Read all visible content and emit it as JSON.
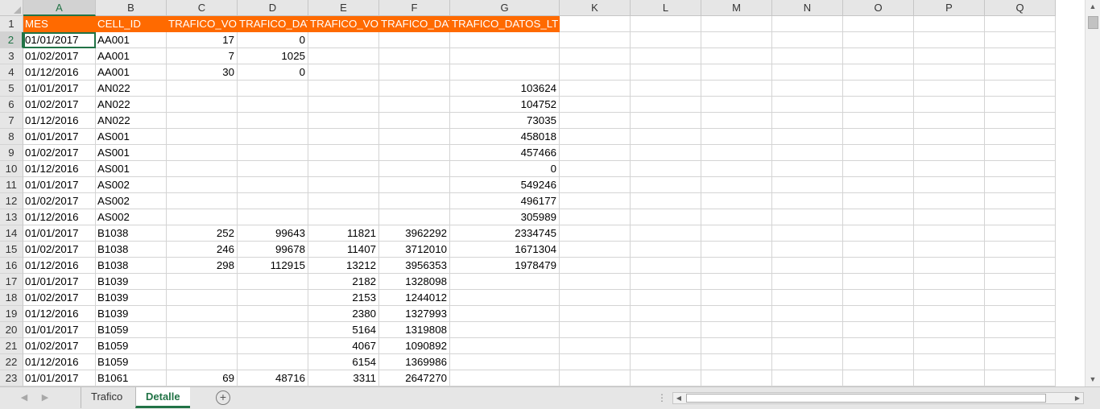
{
  "columns": [
    "A",
    "B",
    "C",
    "D",
    "E",
    "F",
    "G",
    "K",
    "L",
    "M",
    "N",
    "O",
    "P",
    "Q"
  ],
  "selected_column": "A",
  "active_row": 2,
  "header_row": {
    "row_number": "1",
    "cells": [
      "MES",
      "CELL_ID",
      "TRAFICO_VOZ",
      "TRAFICO_DAT",
      "TRAFICO_VOZ",
      "TRAFICO_DAT",
      "TRAFICO_DATOS_LTE"
    ]
  },
  "rows": [
    {
      "n": "2",
      "c": [
        "01/01/2017",
        "AA001",
        "17",
        "0",
        "",
        "",
        ""
      ]
    },
    {
      "n": "3",
      "c": [
        "01/02/2017",
        "AA001",
        "7",
        "1025",
        "",
        "",
        ""
      ]
    },
    {
      "n": "4",
      "c": [
        "01/12/2016",
        "AA001",
        "30",
        "0",
        "",
        "",
        ""
      ]
    },
    {
      "n": "5",
      "c": [
        "01/01/2017",
        "AN022",
        "",
        "",
        "",
        "",
        "103624"
      ]
    },
    {
      "n": "6",
      "c": [
        "01/02/2017",
        "AN022",
        "",
        "",
        "",
        "",
        "104752"
      ]
    },
    {
      "n": "7",
      "c": [
        "01/12/2016",
        "AN022",
        "",
        "",
        "",
        "",
        "73035"
      ]
    },
    {
      "n": "8",
      "c": [
        "01/01/2017",
        "AS001",
        "",
        "",
        "",
        "",
        "458018"
      ]
    },
    {
      "n": "9",
      "c": [
        "01/02/2017",
        "AS001",
        "",
        "",
        "",
        "",
        "457466"
      ]
    },
    {
      "n": "10",
      "c": [
        "01/12/2016",
        "AS001",
        "",
        "",
        "",
        "",
        "0"
      ]
    },
    {
      "n": "11",
      "c": [
        "01/01/2017",
        "AS002",
        "",
        "",
        "",
        "",
        "549246"
      ]
    },
    {
      "n": "12",
      "c": [
        "01/02/2017",
        "AS002",
        "",
        "",
        "",
        "",
        "496177"
      ]
    },
    {
      "n": "13",
      "c": [
        "01/12/2016",
        "AS002",
        "",
        "",
        "",
        "",
        "305989"
      ]
    },
    {
      "n": "14",
      "c": [
        "01/01/2017",
        "B1038",
        "252",
        "99643",
        "11821",
        "3962292",
        "2334745"
      ]
    },
    {
      "n": "15",
      "c": [
        "01/02/2017",
        "B1038",
        "246",
        "99678",
        "11407",
        "3712010",
        "1671304"
      ]
    },
    {
      "n": "16",
      "c": [
        "01/12/2016",
        "B1038",
        "298",
        "112915",
        "13212",
        "3956353",
        "1978479"
      ]
    },
    {
      "n": "17",
      "c": [
        "01/01/2017",
        "B1039",
        "",
        "",
        "2182",
        "1328098",
        ""
      ]
    },
    {
      "n": "18",
      "c": [
        "01/02/2017",
        "B1039",
        "",
        "",
        "2153",
        "1244012",
        ""
      ]
    },
    {
      "n": "19",
      "c": [
        "01/12/2016",
        "B1039",
        "",
        "",
        "2380",
        "1327993",
        ""
      ]
    },
    {
      "n": "20",
      "c": [
        "01/01/2017",
        "B1059",
        "",
        "",
        "5164",
        "1319808",
        ""
      ]
    },
    {
      "n": "21",
      "c": [
        "01/02/2017",
        "B1059",
        "",
        "",
        "4067",
        "1090892",
        ""
      ]
    },
    {
      "n": "22",
      "c": [
        "01/12/2016",
        "B1059",
        "",
        "",
        "6154",
        "1369986",
        ""
      ]
    },
    {
      "n": "23",
      "c": [
        "01/01/2017",
        "B1061",
        "69",
        "48716",
        "3311",
        "2647270",
        ""
      ]
    }
  ],
  "sheet_tabs": [
    {
      "label": "Trafico",
      "active": false
    },
    {
      "label": "Detalle",
      "active": true
    }
  ],
  "colors": {
    "header_fill": "#ff6a00",
    "accent": "#217346"
  },
  "icons": {
    "add_sheet": "plus-circle-icon",
    "scroll_up": "arrow-up-icon",
    "scroll_down": "arrow-down-icon",
    "scroll_left": "arrow-left-icon",
    "scroll_right": "arrow-right-icon",
    "tab_prev": "chevron-left-icon",
    "tab_next": "chevron-right-icon",
    "split": "vertical-dots-icon"
  }
}
